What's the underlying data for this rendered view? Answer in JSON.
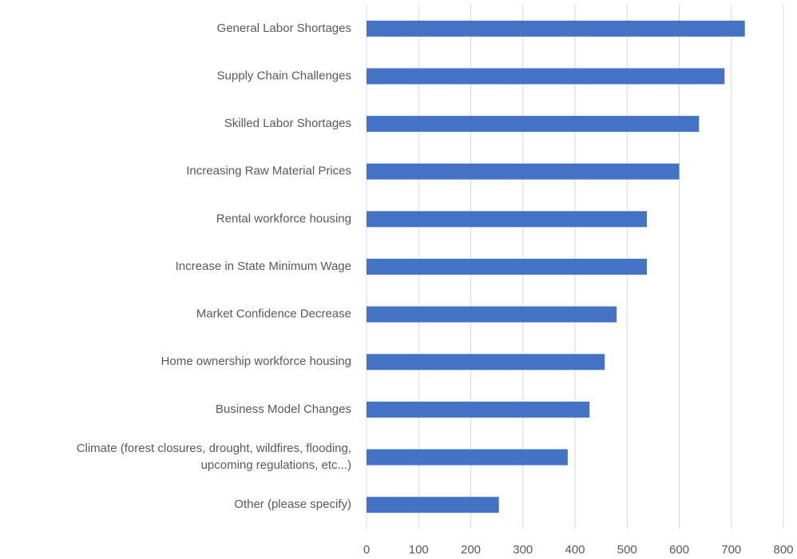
{
  "chart_data": {
    "type": "bar",
    "orientation": "horizontal",
    "categories": [
      "General Labor Shortages",
      "Supply Chain Challenges",
      "Skilled Labor Shortages",
      "Increasing Raw Material Prices",
      "Rental workforce housing",
      "Increase in State Minimum Wage",
      "Market Confidence Decrease",
      "Home ownership workforce housing",
      "Business Model Changes",
      "Climate (forest closures, drought, wildfires, flooding,\nupcoming regulations, etc...)",
      "Other (please specify)"
    ],
    "values": [
      726,
      687,
      638,
      600,
      538,
      538,
      480,
      457,
      428,
      386,
      254
    ],
    "color": "#4472c4",
    "xlim": [
      0,
      800
    ],
    "xticks": [
      0,
      100,
      200,
      300,
      400,
      500,
      600,
      700,
      800
    ],
    "grid": true
  }
}
